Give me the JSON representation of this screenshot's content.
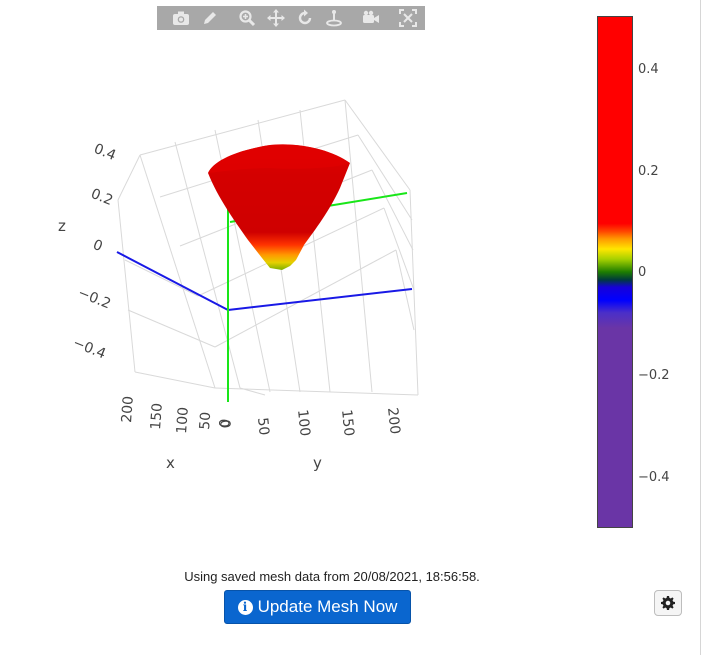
{
  "modebar": {
    "icons": [
      "camera-icon",
      "pencil-icon",
      "zoom-icon",
      "pan-icon",
      "orbit-rotate-icon",
      "turntable-icon",
      "camera-reset-icon",
      "autoscale-icon"
    ]
  },
  "plot": {
    "z_ticks": [
      "0.4",
      "0.2",
      "0",
      "−0.2",
      "−0.4"
    ],
    "x_ticks": [
      "200",
      "150",
      "100",
      "50",
      "0"
    ],
    "y_ticks": [
      "0",
      "50",
      "100",
      "150",
      "200"
    ],
    "axis_titles": {
      "x": "x",
      "y": "y",
      "z": "z"
    },
    "surface_color": "#d50000",
    "axis_colors": {
      "x": "#1919e6",
      "y": "#19e619",
      "z": "#19e619"
    }
  },
  "colorbar": {
    "ticks": [
      "0.4",
      "0.2",
      "0",
      "−0.2",
      "−0.4"
    ],
    "range": [
      -0.5,
      0.5
    ]
  },
  "footer": {
    "status": "Using saved mesh data from 20/08/2021, 18:56:58.",
    "update_button": "Update Mesh Now",
    "settings_icon": "gear-icon"
  }
}
